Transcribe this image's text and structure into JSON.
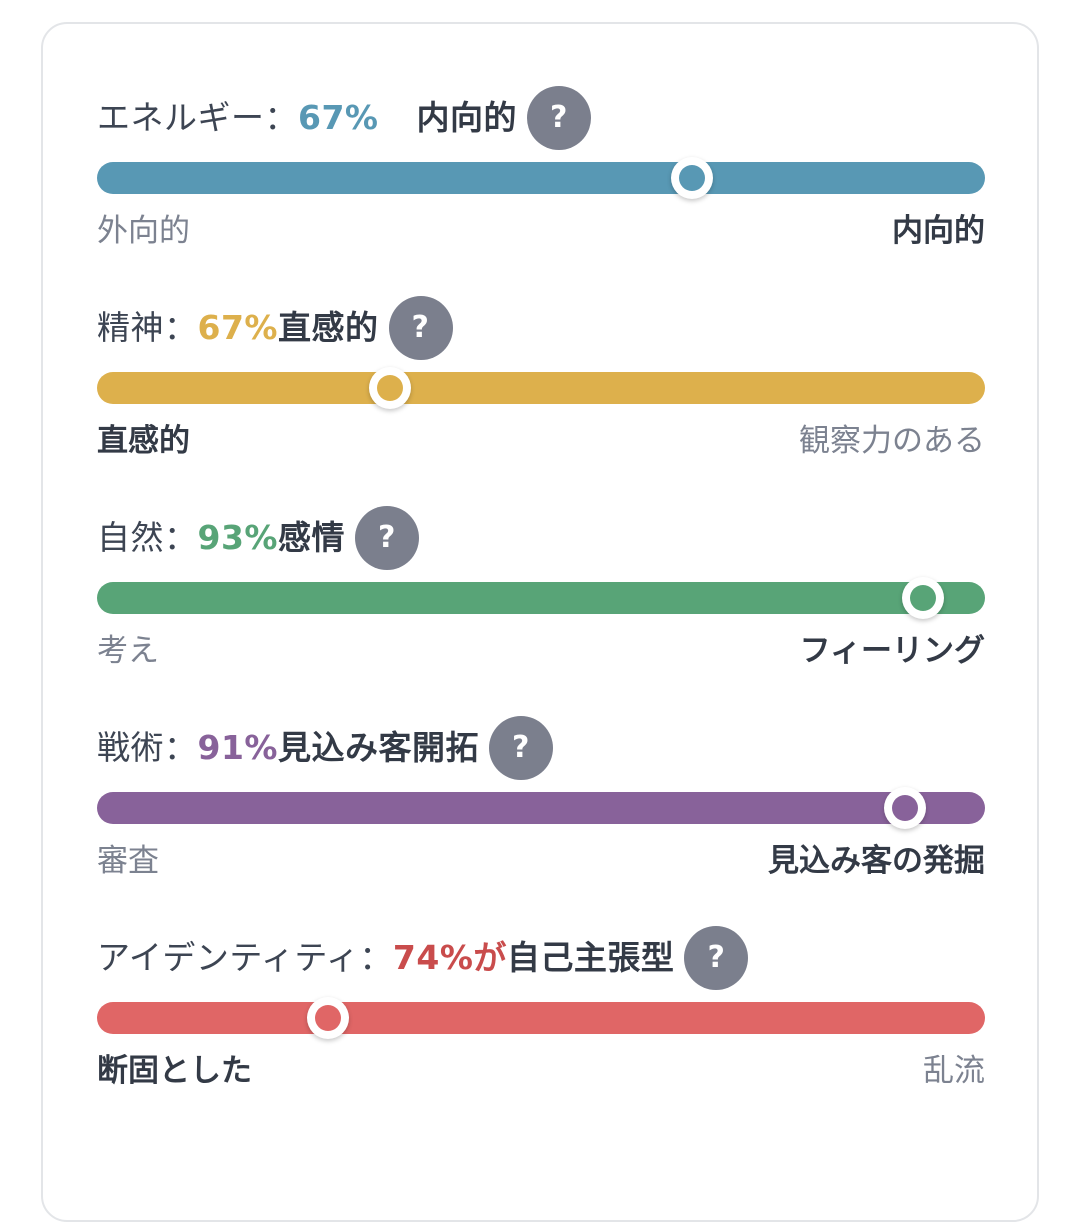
{
  "traits": [
    {
      "label": "エネルギー：",
      "percent": "67%",
      "gap": true,
      "type": "内向的",
      "help": "?",
      "color": "#5898b4",
      "position": 0.67,
      "left_pole": "外向的",
      "right_pole": "内向的",
      "active_side": "right"
    },
    {
      "label": "精神：",
      "percent": "67%",
      "gap": false,
      "type": "直感的",
      "help": "?",
      "color": "#ddb04c",
      "position": 0.33,
      "left_pole": "直感的",
      "right_pole": "観察力のある",
      "active_side": "left"
    },
    {
      "label": "自然：",
      "percent": "93%",
      "gap": false,
      "type": "感情",
      "help": "?",
      "color": "#58a477",
      "position": 0.93,
      "left_pole": "考え",
      "right_pole": "フィーリング",
      "active_side": "right"
    },
    {
      "label": "戦術：",
      "percent": "91%",
      "gap": false,
      "type": "見込み客開拓",
      "help": "?",
      "color": "#88629a",
      "position": 0.91,
      "left_pole": "審査",
      "right_pole": "見込み客の発掘",
      "active_side": "right"
    },
    {
      "label": "アイデンティティ：",
      "percent": "74%が",
      "gap": false,
      "type": "自己主張型",
      "help": "?",
      "color": "#e06666",
      "percent_color": "#c94c4c",
      "position": 0.26,
      "left_pole": "断固とした",
      "right_pole": "乱流",
      "active_side": "left"
    }
  ]
}
